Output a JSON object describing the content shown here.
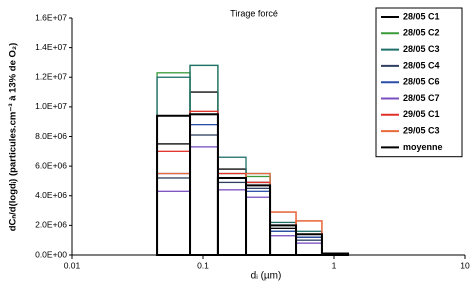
{
  "chart_data": {
    "type": "histogram",
    "title": "Tirage forcé",
    "xlabel": "dᵢ (µm)",
    "ylabel": "dCₙ/d(logdᵢ) (particules.cm⁻³ à 13% de O₂)",
    "xscale": "log",
    "bins": [
      0.0446,
      0.0796,
      0.13,
      0.213,
      0.325,
      0.513,
      0.809,
      1.28
    ],
    "xlim": [
      0.01,
      10
    ],
    "xticks": [
      0.01,
      0.1,
      1,
      10
    ],
    "ylim": [
      0,
      16000000
    ],
    "yticks": [
      {
        "value": 0,
        "label": "0.0E+00"
      },
      {
        "value": 2000000,
        "label": "2.0E+06"
      },
      {
        "value": 4000000,
        "label": "4.0E+06"
      },
      {
        "value": 6000000,
        "label": "6.0E+06"
      },
      {
        "value": 8000000,
        "label": "8.0E+06"
      },
      {
        "value": 10000000,
        "label": "1.0E+07"
      },
      {
        "value": 12000000,
        "label": "1.2E+07"
      },
      {
        "value": 14000000,
        "label": "1.4E+07"
      },
      {
        "value": 16000000,
        "label": "1.6E+07"
      }
    ],
    "legend": "top-right",
    "series": [
      {
        "name": "28/05 C1",
        "color": "#000000",
        "values": [
          7500000,
          11000000,
          5800000,
          4900000,
          1800000,
          1200000,
          100000
        ]
      },
      {
        "name": "28/05 C2",
        "color": "#3a9a3a",
        "values": [
          12300000,
          12800000,
          5500000,
          5300000,
          2000000,
          1400000,
          100000
        ]
      },
      {
        "name": "28/05 C3",
        "color": "#1f6f6a",
        "values": [
          12000000,
          12800000,
          6600000,
          5500000,
          2200000,
          1600000,
          100000
        ]
      },
      {
        "name": "28/05 C4",
        "color": "#2f3f5f",
        "values": [
          5200000,
          8100000,
          4900000,
          4500000,
          1600000,
          1000000,
          50000
        ]
      },
      {
        "name": "28/05 C6",
        "color": "#2a4fa8",
        "values": [
          5500000,
          8800000,
          5200000,
          4300000,
          1600000,
          1200000,
          100000
        ]
      },
      {
        "name": "28/05 C7",
        "color": "#7a4fc0",
        "values": [
          4300000,
          7300000,
          4400000,
          3900000,
          1300000,
          800000,
          50000
        ]
      },
      {
        "name": "29/05 C1",
        "color": "#e0302a",
        "values": [
          7000000,
          9700000,
          5500000,
          4900000,
          2900000,
          2300000,
          100000
        ]
      },
      {
        "name": "29/05 C3",
        "color": "#e86a3a",
        "values": [
          5500000,
          9500000,
          5200000,
          5500000,
          2900000,
          2300000,
          100000
        ]
      },
      {
        "name": "moyenne",
        "color": "#000000",
        "values": [
          9400000,
          9500000,
          5200000,
          4700000,
          2000000,
          1400000,
          100000
        ]
      }
    ]
  }
}
